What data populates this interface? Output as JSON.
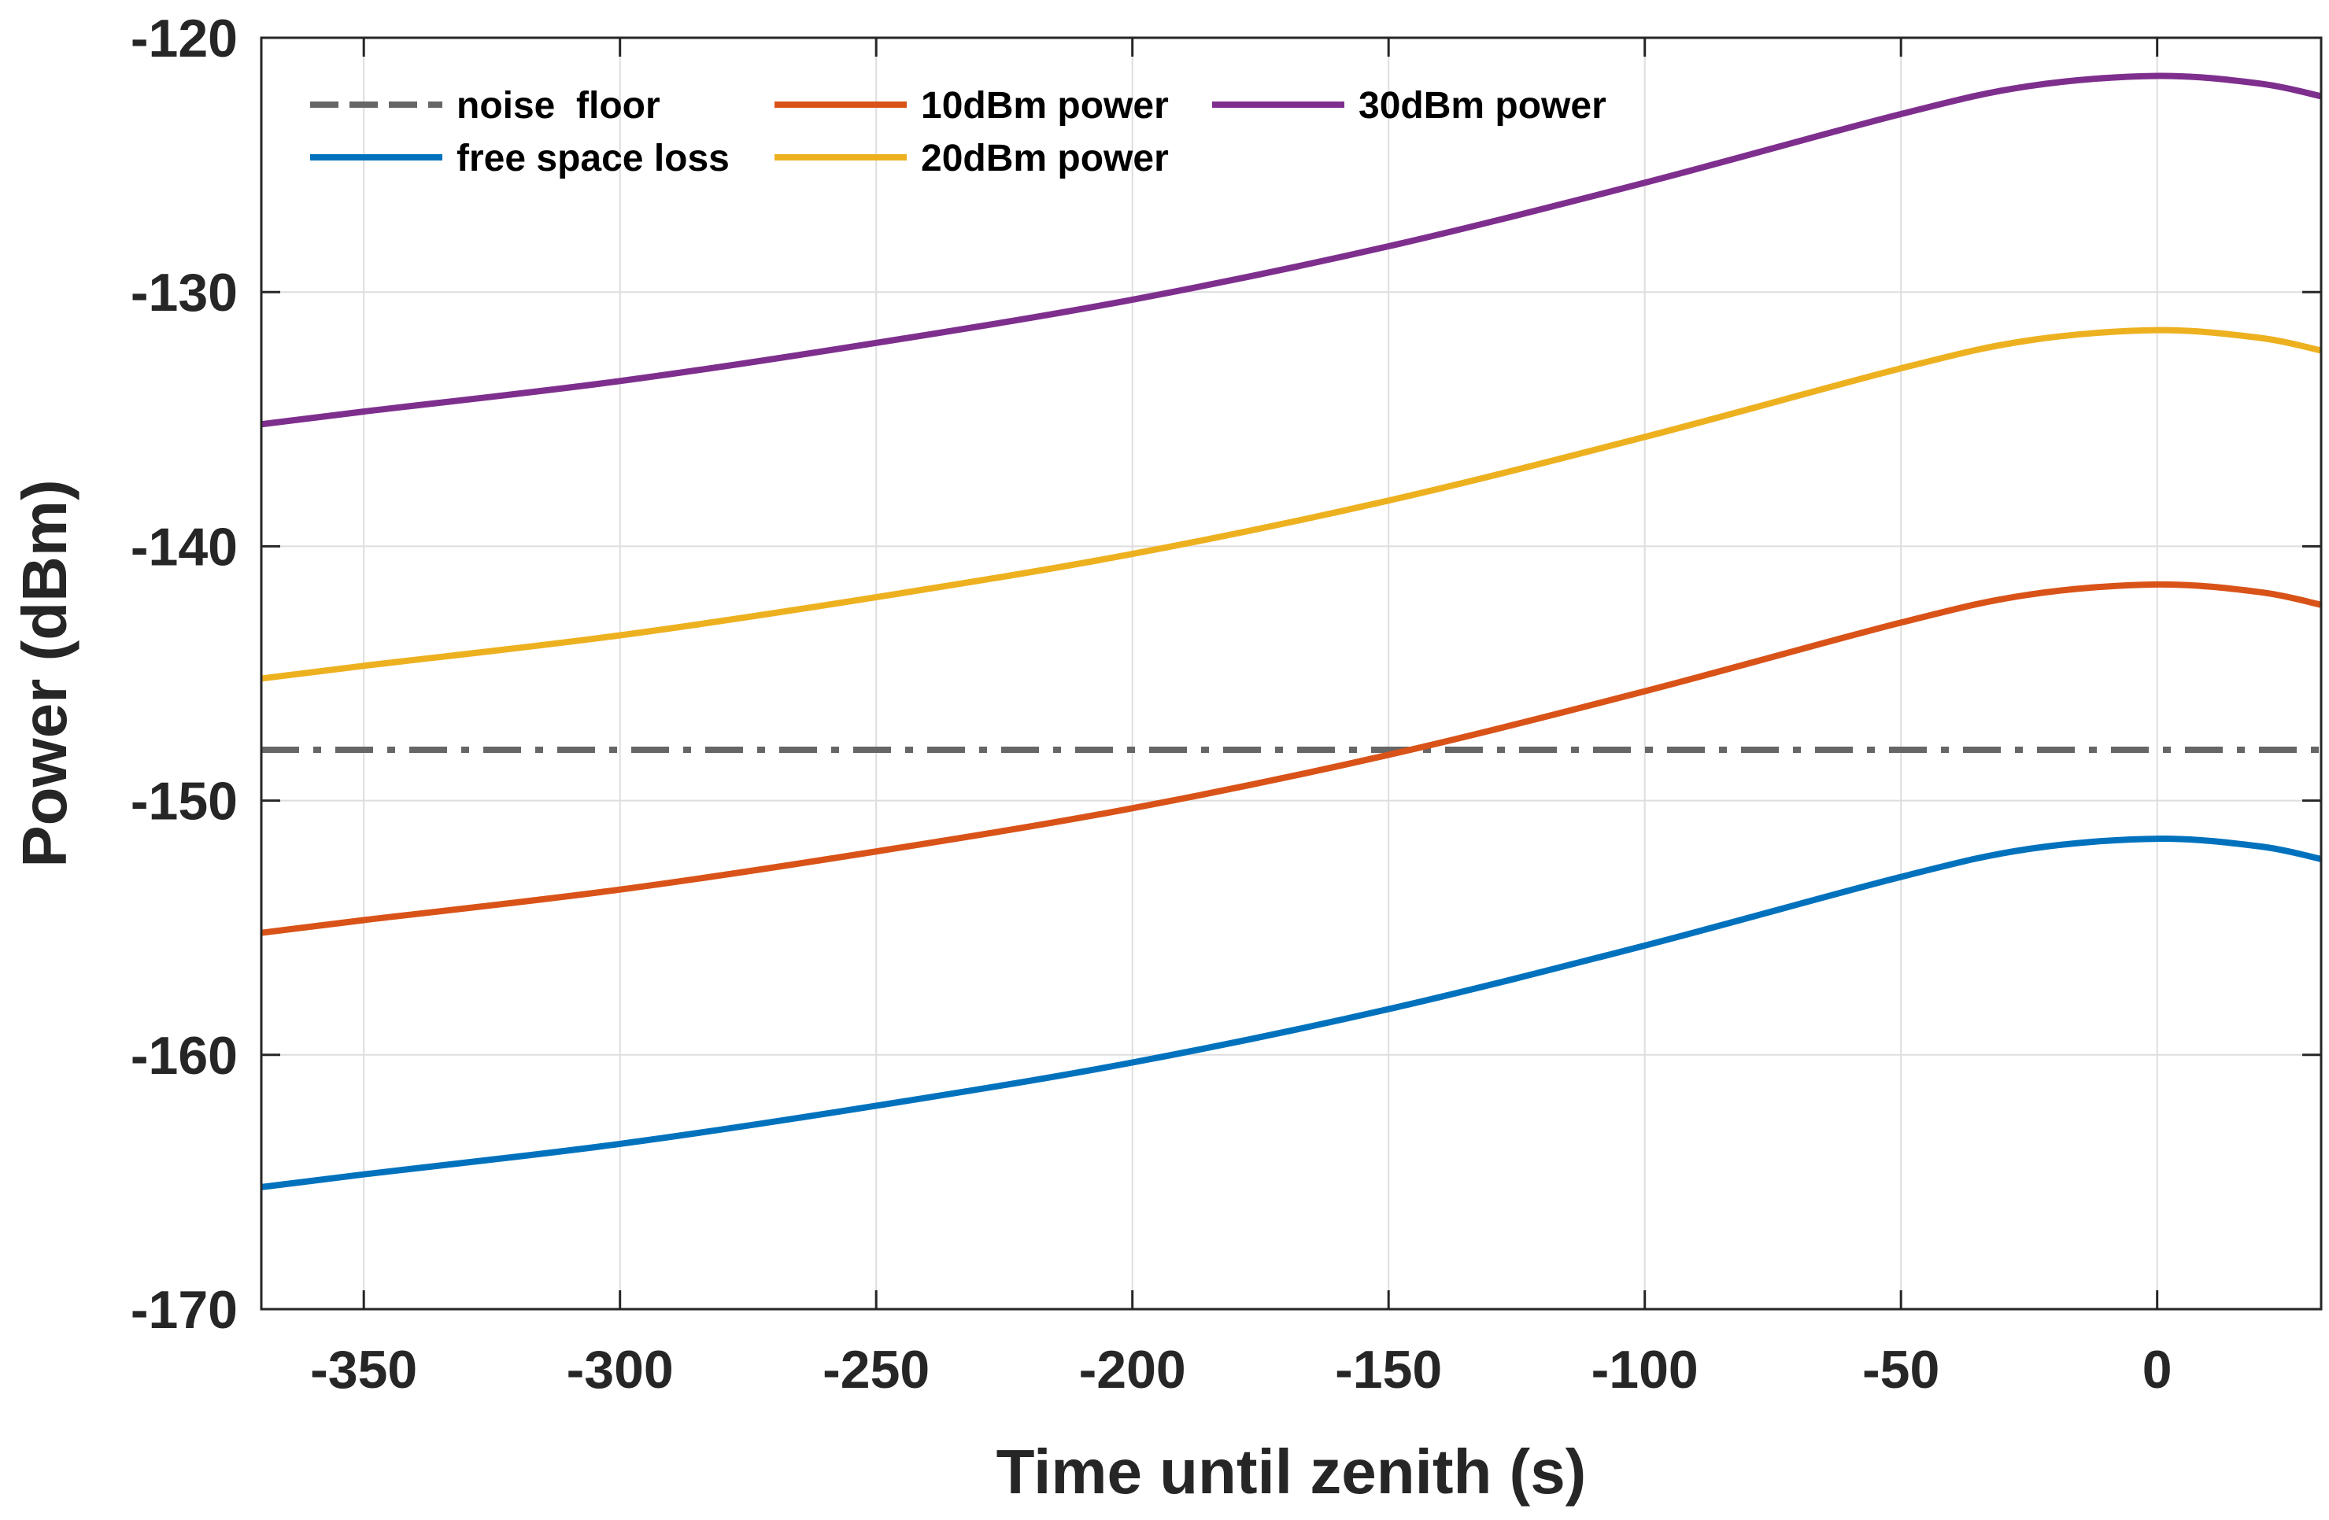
{
  "chart_data": {
    "type": "line",
    "title": "",
    "xlabel": "Time until zenith (s)",
    "ylabel": "Power (dBm)",
    "xlim": [
      -370,
      32
    ],
    "ylim": [
      -170,
      -120
    ],
    "xticks": [
      -350,
      -300,
      -250,
      -200,
      -150,
      -100,
      -50,
      0
    ],
    "yticks": [
      -170,
      -160,
      -150,
      -140,
      -130,
      -120
    ],
    "grid": true,
    "legend_position": "top-left",
    "series": [
      {
        "name": "noise  floor",
        "color": "#666666",
        "style": "dash-dot",
        "x": [
          -370,
          32
        ],
        "y": [
          -148,
          -148
        ]
      },
      {
        "name": "free space loss",
        "color": "#0072BD",
        "style": "solid",
        "x": [
          -370,
          -350,
          -300,
          -250,
          -200,
          -150,
          -100,
          -50,
          -25,
          0,
          20,
          32
        ],
        "y": [
          -165.2,
          -164.7,
          -163.5,
          -162.0,
          -160.3,
          -158.2,
          -155.7,
          -153.0,
          -151.9,
          -151.5,
          -151.8,
          -152.3
        ]
      },
      {
        "name": "10dBm power",
        "color": "#D95319",
        "style": "solid",
        "x": [
          -370,
          -350,
          -300,
          -250,
          -200,
          -150,
          -100,
          -50,
          -25,
          0,
          20,
          32
        ],
        "y": [
          -155.2,
          -154.7,
          -153.5,
          -152.0,
          -150.3,
          -148.2,
          -145.7,
          -143.0,
          -141.9,
          -141.5,
          -141.8,
          -142.3
        ]
      },
      {
        "name": "20dBm power",
        "color": "#EDB120",
        "style": "solid",
        "x": [
          -370,
          -350,
          -300,
          -250,
          -200,
          -150,
          -100,
          -50,
          -25,
          0,
          20,
          32
        ],
        "y": [
          -145.2,
          -144.7,
          -143.5,
          -142.0,
          -140.3,
          -138.2,
          -135.7,
          -133.0,
          -131.9,
          -131.5,
          -131.8,
          -132.3
        ]
      },
      {
        "name": "30dBm power",
        "color": "#7E2F8E",
        "style": "solid",
        "x": [
          -370,
          -350,
          -300,
          -250,
          -200,
          -150,
          -100,
          -50,
          -25,
          0,
          20,
          32
        ],
        "y": [
          -135.2,
          -134.7,
          -133.5,
          -132.0,
          -130.3,
          -128.2,
          -125.7,
          -123.0,
          -121.9,
          -121.5,
          -121.8,
          -122.3
        ]
      }
    ],
    "legend": [
      {
        "series": 0,
        "label": "noise  floor"
      },
      {
        "series": 1,
        "label": "free space loss"
      },
      {
        "series": 2,
        "label": "10dBm power"
      },
      {
        "series": 3,
        "label": "20dBm power"
      },
      {
        "series": 4,
        "label": "30dBm power"
      }
    ]
  }
}
